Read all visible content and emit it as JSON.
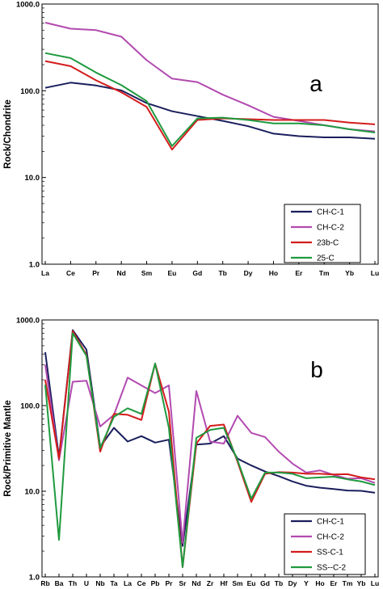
{
  "chart_data": [
    {
      "type": "line",
      "panel_label": "a",
      "ylabel": "Rock/Chondrite",
      "yscale": "log",
      "ylim": [
        1,
        1000
      ],
      "yticks": [
        "1.0",
        "10.0",
        "100.0",
        "1000.0"
      ],
      "ytick_values": [
        1,
        10,
        100,
        1000
      ],
      "categories": [
        "La",
        "Ce",
        "Pr",
        "Nd",
        "Sm",
        "Eu",
        "Gd",
        "Tb",
        "Dy",
        "Ho",
        "Er",
        "Tm",
        "Yb",
        "Lu"
      ],
      "legend_position": "bottom-right",
      "series": [
        {
          "name": "CH-C-1",
          "color": "#1a1f5c",
          "values": [
            108,
            124,
            115,
            101,
            72,
            58,
            51,
            45,
            39,
            32,
            30,
            29,
            29,
            28
          ]
        },
        {
          "name": "CH-C-2",
          "color": "#b24ab0",
          "values": [
            610,
            520,
            500,
            420,
            225,
            138,
            126,
            90,
            68,
            50,
            45,
            40,
            36,
            34
          ]
        },
        {
          "name": "23b-C",
          "color": "#d41c1c",
          "values": [
            220,
            192,
            132,
            96,
            65,
            21,
            46,
            48,
            47,
            46,
            46,
            46,
            43,
            41
          ]
        },
        {
          "name": "25-C",
          "color": "#1f9a3f",
          "values": [
            272,
            238,
            162,
            116,
            76,
            23,
            48,
            49,
            46,
            42,
            42,
            40,
            36,
            33
          ]
        }
      ]
    },
    {
      "type": "line",
      "panel_label": "b",
      "ylabel": "Rock/Primitive Mantle",
      "yscale": "log",
      "ylim": [
        1,
        1000
      ],
      "yticks": [
        "1.0",
        "10.0",
        "100.0",
        "1000.0"
      ],
      "ytick_values": [
        1,
        10,
        100,
        1000
      ],
      "categories": [
        "Rb",
        "Ba",
        "Th",
        "U",
        "Nb",
        "Ta",
        "La",
        "Ce",
        "Pb",
        "Pr",
        "Sr",
        "Nd",
        "Zr",
        "Hf",
        "Sm",
        "Eu",
        "Gd",
        "Tb",
        "Dy",
        "Y",
        "Ho",
        "Er",
        "Tm",
        "Yb",
        "Lu"
      ],
      "legend_position": "bottom-right",
      "series": [
        {
          "name": "CH-C-1",
          "color": "#1a1f5c",
          "values": [
            420,
            25,
            760,
            450,
            33,
            55,
            38,
            44,
            37,
            40,
            2.3,
            35,
            36,
            44,
            24,
            20,
            17,
            15,
            13,
            11.6,
            11,
            10.6,
            10.2,
            10.1,
            9.6
          ]
        },
        {
          "name": "CH-C-2",
          "color": "#b24ab0",
          "values": [
            300,
            23,
            190,
            195,
            57,
            78,
            212,
            172,
            140,
            172,
            2.5,
            148,
            38,
            36,
            76,
            48,
            43,
            29,
            21,
            16.5,
            17.5,
            15.5,
            14,
            14.2,
            12.5
          ]
        },
        {
          "name": "SS-C-1",
          "color": "#d41c1c",
          "values": [
            200,
            24,
            740,
            390,
            29,
            80,
            78,
            68,
            310,
            85,
            1.3,
            36,
            58,
            60,
            22,
            7.5,
            16,
            16.7,
            16.5,
            16,
            16,
            15.7,
            15.8,
            14.5,
            13.8
          ]
        },
        {
          "name": "SS--C-2",
          "color": "#1f9a3f",
          "values": [
            175,
            2.7,
            700,
            380,
            32,
            74,
            93,
            80,
            310,
            55,
            1.3,
            42,
            52,
            55,
            23,
            8.2,
            16.5,
            16.5,
            16,
            14.2,
            14.5,
            14.8,
            13.8,
            13,
            11.8
          ]
        }
      ]
    }
  ]
}
